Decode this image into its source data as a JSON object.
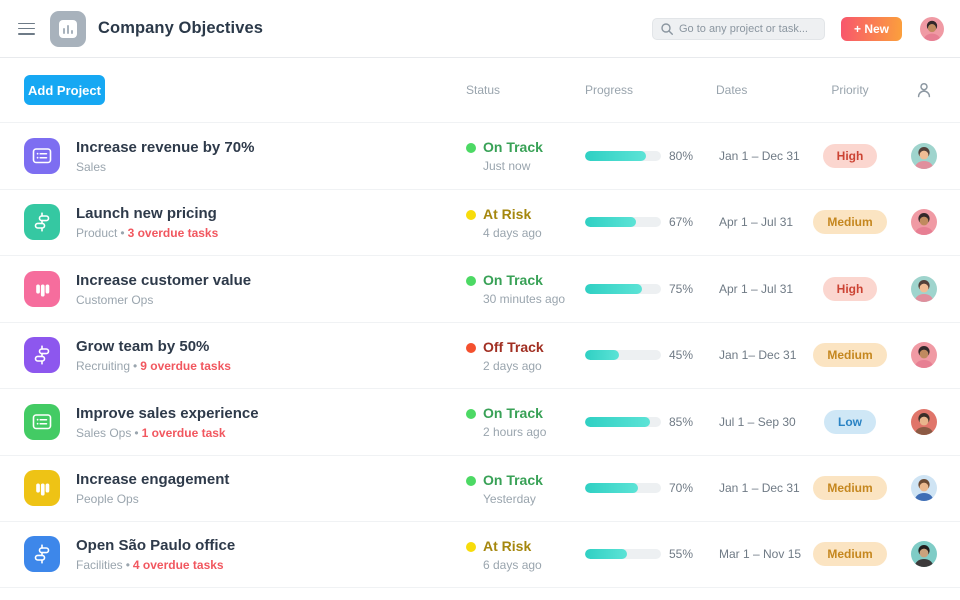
{
  "header": {
    "title": "Company Objectives",
    "search_placeholder": "Go to any project or task...",
    "new_button_label": "+ New",
    "avatar": {
      "bg": "#f09aa4",
      "skin": "#c08a5f",
      "hair": "#33282a",
      "shirt": "#e77f93"
    }
  },
  "toolbar": {
    "add_project_label": "Add Project"
  },
  "columns": {
    "status": "Status",
    "progress": "Progress",
    "dates": "Dates",
    "priority": "Priority"
  },
  "misc": {
    "subtitle_separator": "•"
  },
  "colors": {
    "accent_blue": "#16a8f3",
    "progress_fill_start": "#2fd0c3",
    "progress_fill_end": "#5ce3d6"
  },
  "rows": [
    {
      "title": "Increase revenue by 70%",
      "team": "Sales",
      "overdue": "",
      "icon": "list",
      "icon_color": "#7d6ef1",
      "status_label": "On Track",
      "status_type": "on-track",
      "updated": "Just now",
      "progress_pct": 80,
      "progress_label": "80%",
      "dates": "Jan 1 – Dec 31",
      "priority_label": "High",
      "priority_type": "high",
      "avatar": {
        "bg": "#9fd4cd",
        "skin": "#f0bd95",
        "hair": "#53413a",
        "shirt": "#e08f9d"
      }
    },
    {
      "title": "Launch new pricing",
      "team": "Product",
      "overdue": "3 overdue tasks",
      "icon": "timeline",
      "icon_color": "#35c8a2",
      "status_label": "At Risk",
      "status_type": "at-risk",
      "updated": "4 days ago",
      "progress_pct": 67,
      "progress_label": "67%",
      "dates": "Apr 1 – Jul 31",
      "priority_label": "Medium",
      "priority_type": "medium",
      "avatar": {
        "bg": "#f09aa4",
        "skin": "#c08a5f",
        "hair": "#33282a",
        "shirt": "#e77f93"
      }
    },
    {
      "title": "Increase customer value",
      "team": "Customer Ops",
      "overdue": "",
      "icon": "board",
      "icon_color": "#f66d9d",
      "status_label": "On Track",
      "status_type": "on-track",
      "updated": "30 minutes ago",
      "progress_pct": 75,
      "progress_label": "75%",
      "dates": "Apr 1 – Jul 31",
      "priority_label": "High",
      "priority_type": "high",
      "avatar": {
        "bg": "#9fd4cd",
        "skin": "#f0bd95",
        "hair": "#53413a",
        "shirt": "#e08f9d"
      }
    },
    {
      "title": "Grow team by 50%",
      "team": "Recruiting",
      "overdue": "9 overdue tasks",
      "icon": "timeline",
      "icon_color": "#8d57ee",
      "status_label": "Off Track",
      "status_type": "off-track",
      "updated": "2 days ago",
      "progress_pct": 45,
      "progress_label": "45%",
      "dates": "Jan 1– Dec 31",
      "priority_label": "Medium",
      "priority_type": "medium",
      "avatar": {
        "bg": "#f09aa4",
        "skin": "#c08a5f",
        "hair": "#33282a",
        "shirt": "#e77f93"
      }
    },
    {
      "title": "Improve sales experience",
      "team": "Sales Ops",
      "overdue": "1 overdue task",
      "icon": "list",
      "icon_color": "#43cb64",
      "status_label": "On Track",
      "status_type": "on-track",
      "updated": "2 hours ago",
      "progress_pct": 85,
      "progress_label": "85%",
      "dates": "Jul 1 – Sep 30",
      "priority_label": "Low",
      "priority_type": "low",
      "avatar": {
        "bg": "#e0756a",
        "skin": "#e9b58c",
        "hair": "#3a2f28",
        "shirt": "#8c5a44"
      }
    },
    {
      "title": "Increase engagement",
      "team": "People Ops",
      "overdue": "",
      "icon": "board",
      "icon_color": "#eec315",
      "status_label": "On Track",
      "status_type": "on-track",
      "updated": "Yesterday",
      "progress_pct": 70,
      "progress_label": "70%",
      "dates": "Jan 1 – Dec 31",
      "priority_label": "Medium",
      "priority_type": "medium",
      "avatar": {
        "bg": "#cfe4f4",
        "skin": "#eab88e",
        "hair": "#6b4a33",
        "shirt": "#3f6eb5"
      }
    },
    {
      "title": "Open São Paulo office",
      "team": "Facilities",
      "overdue": "4 overdue tasks",
      "icon": "timeline",
      "icon_color": "#3d87ea",
      "status_label": "At Risk",
      "status_type": "at-risk",
      "updated": "6 days ago",
      "progress_pct": 55,
      "progress_label": "55%",
      "dates": "Mar 1 – Nov 15",
      "priority_label": "Medium",
      "priority_type": "medium",
      "avatar": {
        "bg": "#7fccc6",
        "skin": "#caa27c",
        "hair": "#221d1c",
        "shirt": "#3c3a3a"
      }
    }
  ]
}
